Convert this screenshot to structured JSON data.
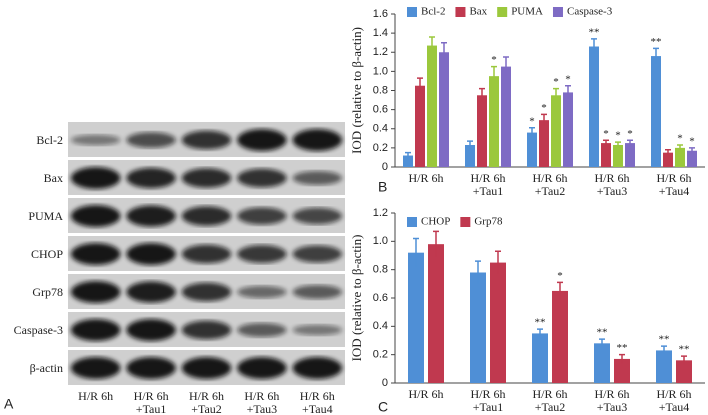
{
  "blot": {
    "panel_label": "A",
    "rows": [
      "Bcl-2",
      "Bax",
      "PUMA",
      "CHOP",
      "Grp78",
      "Caspase-3",
      "β-actin"
    ],
    "lanes": [
      "H/R 6h",
      "H/R 6h\n+Tau1",
      "H/R 6h\n+Tau2",
      "H/R 6h\n+Tau3",
      "H/R 6h\n+Tau4"
    ]
  },
  "chart_data": [
    {
      "type": "bar",
      "panel_label": "B",
      "y_label": "IOD (relative to β-actin)",
      "categories": [
        "H/R 6h",
        "H/R 6h\n+Tau1",
        "H/R 6h\n+Tau2",
        "H/R 6h\n+Tau3",
        "H/R 6h\n+Tau4"
      ],
      "series": [
        {
          "name": "Bcl-2",
          "color": "#4f8fd6",
          "values": [
            0.12,
            0.23,
            0.36,
            1.26,
            1.16
          ],
          "errors": [
            0.03,
            0.04,
            0.05,
            0.08,
            0.08
          ],
          "annotations": [
            null,
            null,
            "*",
            "**",
            "**"
          ]
        },
        {
          "name": "Bax",
          "color": "#c0394f",
          "values": [
            0.85,
            0.75,
            0.49,
            0.25,
            0.15
          ],
          "errors": [
            0.08,
            0.07,
            0.06,
            0.03,
            0.03
          ],
          "annotations": [
            null,
            null,
            "*",
            "*",
            null
          ]
        },
        {
          "name": "PUMA",
          "color": "#9bc83c",
          "values": [
            1.27,
            0.95,
            0.75,
            0.23,
            0.2
          ],
          "errors": [
            0.09,
            0.1,
            0.07,
            0.03,
            0.03
          ],
          "annotations": [
            null,
            "*",
            "*",
            "*",
            "*"
          ]
        },
        {
          "name": "Caspase-3",
          "color": "#7e6bc4",
          "values": [
            1.2,
            1.05,
            0.78,
            0.25,
            0.17
          ],
          "errors": [
            0.1,
            0.1,
            0.07,
            0.03,
            0.03
          ],
          "annotations": [
            null,
            null,
            "*",
            "*",
            "*"
          ]
        }
      ],
      "ylim": [
        0,
        1.6
      ],
      "yticks": [
        0,
        0.2,
        0.4,
        0.6,
        0.8,
        {
          "value": 1,
          "label": "1.0"
        },
        1.2,
        1.4,
        1.6
      ]
    },
    {
      "type": "bar",
      "panel_label": "C",
      "y_label": "IOD (relative to β-actin)",
      "categories": [
        "H/R 6h",
        "H/R 6h\n+Tau1",
        "H/R 6h\n+Tau2",
        "H/R 6h\n+Tau3",
        "H/R 6h\n+Tau4"
      ],
      "series": [
        {
          "name": "CHOP",
          "color": "#4f8fd6",
          "values": [
            0.92,
            0.78,
            0.35,
            0.28,
            0.23
          ],
          "errors": [
            0.1,
            0.08,
            0.03,
            0.03,
            0.03
          ],
          "annotations": [
            null,
            null,
            "**",
            "**",
            "**"
          ]
        },
        {
          "name": "Grp78",
          "color": "#c0394f",
          "values": [
            0.98,
            0.85,
            0.65,
            0.17,
            0.16
          ],
          "errors": [
            0.09,
            0.08,
            0.06,
            0.03,
            0.03
          ],
          "annotations": [
            null,
            null,
            "*",
            "**",
            "**"
          ]
        }
      ],
      "ylim": [
        0,
        1.2
      ],
      "yticks": [
        0,
        0.2,
        0.4,
        0.6,
        0.8,
        {
          "value": 1,
          "label": "1.0"
        },
        1.2
      ]
    }
  ]
}
